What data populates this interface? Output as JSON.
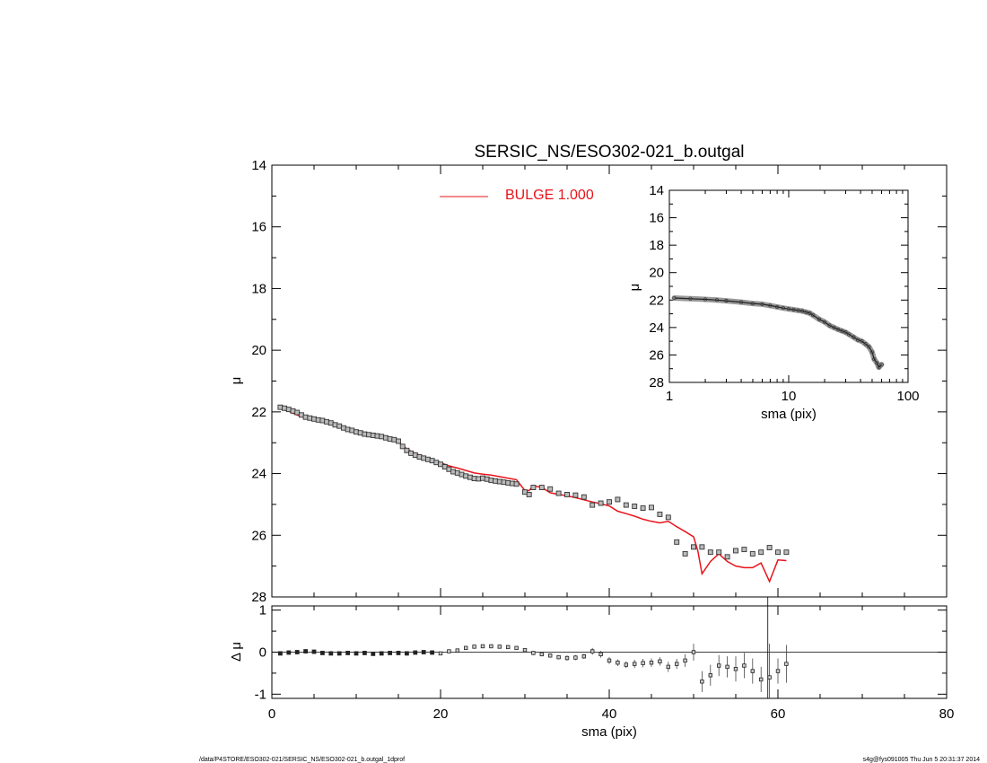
{
  "chart_data": [
    {
      "type": "scatter",
      "panel": "main",
      "title": "SERSIC_NS/ESO302-021_b.outgal",
      "xlabel": "",
      "ylabel": "μ",
      "xlim": [
        0,
        80
      ],
      "ylim": [
        28,
        14
      ],
      "y_inverted": true,
      "y_ticks": [
        14,
        16,
        18,
        20,
        22,
        24,
        26,
        28
      ],
      "x_ticks": [
        0,
        20,
        40,
        60,
        80
      ],
      "x_tick_labels_shown": false,
      "legend": {
        "placement": "top-center",
        "label": "BULGE  1.000",
        "color": "#e8141a"
      },
      "series": [
        {
          "name": "data",
          "marker": "open-square",
          "color": "#555555",
          "x": [
            1,
            1.5,
            2,
            2.5,
            3,
            3.5,
            4,
            4.5,
            5,
            5.5,
            6,
            6.5,
            7,
            7.5,
            8,
            8.5,
            9,
            9.5,
            10,
            10.5,
            11,
            11.5,
            12,
            12.5,
            13,
            13.5,
            14,
            14.5,
            15,
            15.5,
            16,
            16.5,
            17,
            17.5,
            18,
            18.5,
            19,
            19.5,
            20,
            20.5,
            21,
            21.5,
            22,
            22.5,
            23,
            23.5,
            24,
            24.5,
            25,
            25.5,
            26,
            26.5,
            27,
            27.5,
            28,
            28.5,
            29,
            30,
            30.5,
            31,
            32,
            33,
            34,
            35,
            36,
            37,
            38,
            39,
            40,
            41,
            42,
            43,
            44,
            45,
            46,
            47,
            48,
            49,
            50,
            51,
            52,
            53,
            54,
            55,
            56,
            57,
            58,
            59,
            60,
            61
          ],
          "y": [
            21.85,
            21.88,
            21.92,
            21.97,
            22.02,
            22.1,
            22.17,
            22.2,
            22.23,
            22.26,
            22.28,
            22.32,
            22.36,
            22.42,
            22.46,
            22.52,
            22.57,
            22.6,
            22.65,
            22.68,
            22.72,
            22.74,
            22.76,
            22.78,
            22.8,
            22.84,
            22.88,
            22.9,
            22.95,
            23.12,
            23.25,
            23.34,
            23.4,
            23.46,
            23.5,
            23.54,
            23.58,
            23.64,
            23.7,
            23.78,
            23.86,
            23.94,
            23.98,
            24.03,
            24.08,
            24.12,
            24.16,
            24.17,
            24.15,
            24.18,
            24.22,
            24.24,
            24.26,
            24.28,
            24.3,
            24.32,
            24.34,
            24.6,
            24.68,
            24.45,
            24.45,
            24.5,
            24.64,
            24.68,
            24.7,
            24.76,
            25.02,
            24.96,
            24.92,
            24.84,
            25.02,
            25.06,
            25.12,
            25.1,
            25.32,
            25.42,
            26.22,
            26.6,
            26.38,
            26.38,
            26.55,
            26.55,
            26.7,
            26.5,
            26.46,
            26.6,
            26.55,
            26.4,
            26.55,
            26.55
          ]
        },
        {
          "name": "BULGE  1.000",
          "marker": "line",
          "color": "#e8141a",
          "x": [
            1,
            2,
            3,
            4,
            5,
            6,
            7,
            8,
            9,
            10,
            11,
            12,
            13,
            14,
            15,
            16,
            17,
            18,
            19,
            20,
            21,
            22,
            23,
            24,
            25,
            26,
            27,
            28,
            29,
            30,
            30.5,
            31,
            32,
            33,
            34,
            35,
            36,
            37,
            38,
            39,
            40,
            41,
            42,
            43,
            44,
            45,
            46,
            47,
            48,
            49,
            50,
            50.5,
            51,
            52,
            53,
            54,
            55,
            56,
            57,
            58,
            59,
            60,
            61
          ],
          "y": [
            21.9,
            21.98,
            22.1,
            22.2,
            22.27,
            22.32,
            22.4,
            22.5,
            22.58,
            22.66,
            22.72,
            22.78,
            22.84,
            22.9,
            22.98,
            23.2,
            23.35,
            23.45,
            23.55,
            23.65,
            23.75,
            23.82,
            23.9,
            23.98,
            24.02,
            24.05,
            24.1,
            24.15,
            24.2,
            24.55,
            24.55,
            24.4,
            24.45,
            24.62,
            24.68,
            24.72,
            24.78,
            24.85,
            24.92,
            24.98,
            25.05,
            25.22,
            25.3,
            25.38,
            25.48,
            25.55,
            25.6,
            25.55,
            25.72,
            25.88,
            26.05,
            26.5,
            27.25,
            26.85,
            26.6,
            26.85,
            27.0,
            27.05,
            27.05,
            26.9,
            27.5,
            26.8,
            26.82
          ]
        }
      ]
    },
    {
      "type": "scatter",
      "panel": "inset",
      "xlabel": "sma (pix)",
      "ylabel": "μ",
      "x_scale": "log",
      "xlim": [
        1,
        100
      ],
      "ylim": [
        28,
        14
      ],
      "y_inverted": true,
      "y_ticks": [
        14,
        16,
        18,
        20,
        22,
        24,
        26,
        28
      ],
      "x_ticks": [
        1,
        10,
        100
      ],
      "x_tick_labels": [
        "1",
        "10",
        "100"
      ],
      "y_tick_labels": [
        "14",
        "16",
        "18",
        "20",
        "22",
        "24",
        "26",
        "28"
      ],
      "series": [
        {
          "name": "data",
          "marker": "open-circle",
          "color": "#444444",
          "x": [
            1.1,
            1.5,
            2,
            2.5,
            3,
            4,
            5,
            6,
            7,
            8,
            9,
            10,
            11,
            12,
            13,
            14,
            15,
            16,
            18,
            20,
            22,
            24,
            26,
            28,
            30,
            32,
            35,
            38,
            41,
            44,
            47,
            50,
            52,
            55,
            57,
            60
          ],
          "y": [
            21.85,
            21.9,
            21.95,
            22.0,
            22.05,
            22.15,
            22.25,
            22.3,
            22.4,
            22.5,
            22.58,
            22.65,
            22.7,
            22.75,
            22.8,
            22.88,
            22.95,
            23.1,
            23.4,
            23.6,
            23.85,
            24.0,
            24.15,
            24.25,
            24.35,
            24.5,
            24.7,
            24.9,
            25.0,
            25.2,
            25.4,
            25.8,
            26.3,
            26.6,
            26.9,
            26.7
          ]
        }
      ]
    },
    {
      "type": "scatter",
      "panel": "residuals",
      "xlabel": "sma (pix)",
      "ylabel": "Δ μ",
      "xlim": [
        0,
        80
      ],
      "ylim": [
        -1.1,
        1.1
      ],
      "y_ticks": [
        -1,
        0,
        1
      ],
      "y_tick_labels": [
        "-1",
        "0",
        "1"
      ],
      "x_ticks": [
        0,
        20,
        40,
        60,
        80
      ],
      "x_tick_labels": [
        "0",
        "20",
        "40",
        "60",
        "80"
      ],
      "reference_line": 0,
      "vertical_line_x": 58.8,
      "series": [
        {
          "name": "residual",
          "marker": "open-square",
          "color": "#444444",
          "x": [
            1,
            2,
            3,
            4,
            5,
            6,
            7,
            8,
            9,
            10,
            11,
            12,
            13,
            14,
            15,
            16,
            17,
            18,
            19,
            20,
            21,
            22,
            23,
            24,
            25,
            26,
            27,
            28,
            29,
            30,
            31,
            32,
            33,
            34,
            35,
            36,
            37,
            38,
            39,
            40,
            41,
            42,
            43,
            44,
            45,
            46,
            47,
            48,
            49,
            50,
            51,
            52,
            53,
            54,
            55,
            56,
            57,
            58,
            59,
            60,
            61
          ],
          "y": [
            -0.03,
            -0.01,
            0.0,
            0.02,
            0.01,
            -0.02,
            -0.03,
            -0.03,
            -0.02,
            -0.03,
            -0.02,
            -0.04,
            -0.03,
            -0.02,
            -0.02,
            -0.03,
            -0.01,
            0.0,
            -0.01,
            -0.03,
            0.02,
            0.04,
            0.1,
            0.13,
            0.14,
            0.14,
            0.13,
            0.12,
            0.1,
            0.05,
            -0.02,
            -0.05,
            -0.08,
            -0.12,
            -0.14,
            -0.13,
            -0.1,
            0.02,
            -0.05,
            -0.2,
            -0.25,
            -0.3,
            -0.28,
            -0.26,
            -0.25,
            -0.22,
            -0.35,
            -0.28,
            -0.2,
            0.0,
            -0.7,
            -0.55,
            -0.32,
            -0.35,
            -0.4,
            -0.32,
            -0.45,
            -0.65,
            -0.6,
            -0.45,
            -0.28
          ],
          "err": [
            0.02,
            0.02,
            0.02,
            0.02,
            0.02,
            0.02,
            0.02,
            0.02,
            0.02,
            0.02,
            0.02,
            0.02,
            0.02,
            0.02,
            0.02,
            0.02,
            0.02,
            0.02,
            0.02,
            0.02,
            0.03,
            0.03,
            0.03,
            0.03,
            0.03,
            0.03,
            0.03,
            0.03,
            0.04,
            0.04,
            0.05,
            0.05,
            0.05,
            0.05,
            0.06,
            0.06,
            0.06,
            0.08,
            0.08,
            0.08,
            0.08,
            0.08,
            0.1,
            0.1,
            0.1,
            0.1,
            0.12,
            0.12,
            0.15,
            0.2,
            0.25,
            0.25,
            0.25,
            0.25,
            0.3,
            0.3,
            0.3,
            0.3,
            0.8,
            0.3,
            0.45
          ]
        }
      ]
    }
  ],
  "footer": {
    "path": "/data/P4STORE/ESO302-021/SERSIC_NS/ESO302-021_b.outgal_1dprof",
    "user_time": "s4g@fys091005  Thu Jun  5 20:31:37 2014"
  }
}
